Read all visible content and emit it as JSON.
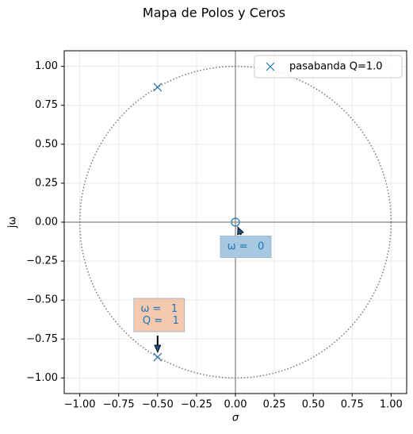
{
  "chart_data": {
    "type": "scatter",
    "title": "Mapa de Polos y Ceros",
    "xlabel": "σ",
    "ylabel": "jω",
    "xlim": [
      -1.1,
      1.1
    ],
    "ylim": [
      -1.1,
      1.1
    ],
    "xticks": [
      {
        "value": -1,
        "label": "−1.00"
      },
      {
        "value": -0.75,
        "label": "−0.75"
      },
      {
        "value": -0.5,
        "label": "−0.50"
      },
      {
        "value": -0.25,
        "label": "−0.25"
      },
      {
        "value": 0,
        "label": "0.00"
      },
      {
        "value": 0.25,
        "label": "0.25"
      },
      {
        "value": 0.5,
        "label": "0.50"
      },
      {
        "value": 0.75,
        "label": "0.75"
      },
      {
        "value": 1,
        "label": "1.00"
      }
    ],
    "yticks": [
      {
        "value": -1,
        "label": "−1.00"
      },
      {
        "value": -0.75,
        "label": "−0.75"
      },
      {
        "value": -0.5,
        "label": "−0.50"
      },
      {
        "value": -0.25,
        "label": "−0.25"
      },
      {
        "value": 0,
        "label": "0.00"
      },
      {
        "value": 0.25,
        "label": "0.25"
      },
      {
        "value": 0.5,
        "label": "0.50"
      },
      {
        "value": 0.75,
        "label": "0.75"
      },
      {
        "value": 1,
        "label": "1.00"
      }
    ],
    "grid": true,
    "unit_circle": true,
    "legend": "upper right",
    "series": [
      {
        "name": "pasabanda Q=1.0",
        "color": "#1f77b4",
        "marker": "x",
        "x": [
          -0.5,
          -0.5
        ],
        "values": [
          0.866,
          -0.866
        ]
      },
      {
        "color": "#1f77b4",
        "marker": "o",
        "x": [
          0
        ],
        "values": [
          0
        ]
      }
    ],
    "annotations": [
      {
        "lines": [
          "ω =   0"
        ],
        "x": 0,
        "y": 0,
        "color": "#a6c8e0"
      },
      {
        "lines": [
          "ω =   1",
          " Q =   1"
        ],
        "x": -0.5,
        "y": -0.866,
        "color": "#f4c9b0"
      }
    ]
  }
}
